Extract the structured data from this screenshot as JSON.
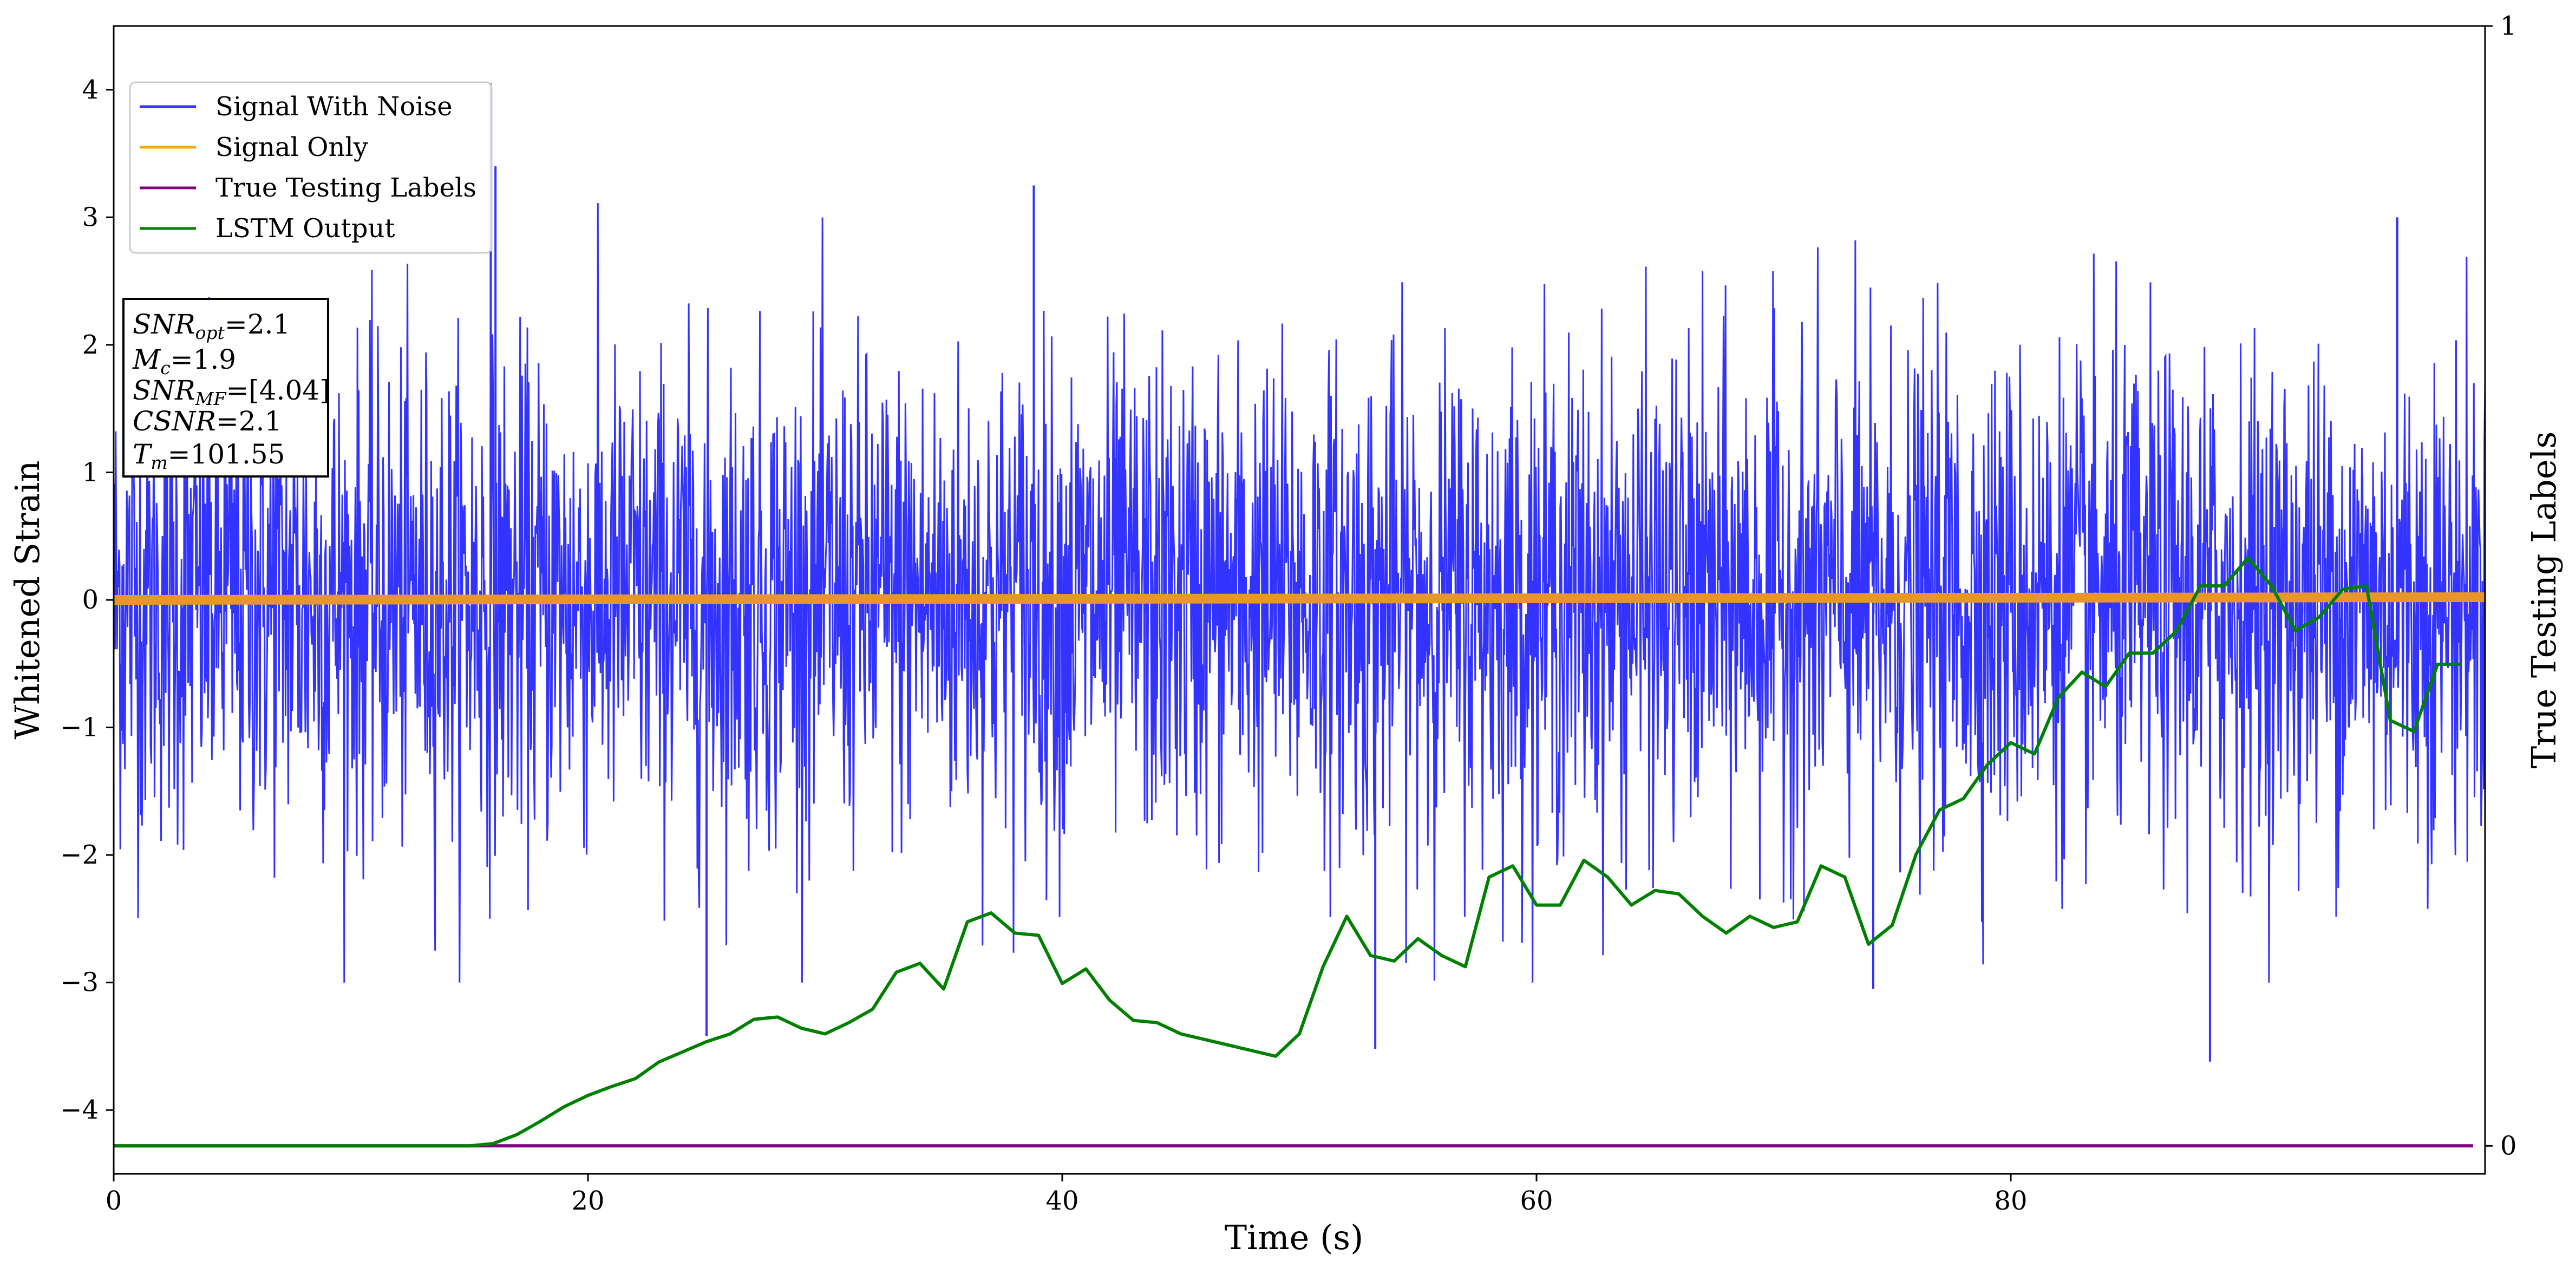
{
  "chart_data": {
    "type": "line",
    "xlabel": "Time (s)",
    "ylabel": "Whitened Strain",
    "ylabel_right": "True Testing Labels",
    "xlim": [
      0,
      100
    ],
    "ylim": [
      -4.5,
      4.5
    ],
    "ylim_right": [
      -0.025,
      1
    ],
    "x_ticks": [
      "0",
      "20",
      "40",
      "60",
      "80"
    ],
    "y_ticks": [
      "−4",
      "−3",
      "−2",
      "−1",
      "0",
      "1",
      "2",
      "3",
      "4"
    ],
    "y_ticks_right": [
      "0",
      "1"
    ],
    "legend_position": "upper-left",
    "colors": {
      "signal_with_noise": "#3333ff",
      "signal_only": "#e8952c",
      "true_labels": "#800080",
      "lstm_output": "#008000"
    },
    "series": [
      {
        "name": "Signal With Noise",
        "axis": "left",
        "noise_envelope": {
          "typical_range": [
            -1.6,
            1.6
          ],
          "max_peak": 4.05,
          "min_peak": -3.62
        }
      },
      {
        "name": "Signal Only",
        "axis": "left",
        "x": [
          0,
          100
        ],
        "y": [
          0.0,
          0.0
        ]
      },
      {
        "name": "True Testing Labels",
        "axis": "right",
        "x": [
          0,
          100
        ],
        "y": [
          0.0,
          0.0
        ]
      },
      {
        "name": "LSTM Output",
        "axis": "right",
        "x": [
          0,
          15,
          16,
          17,
          18,
          19,
          20,
          21,
          22,
          23,
          24,
          25,
          26,
          27,
          28,
          29,
          30,
          31,
          32,
          33,
          34,
          35,
          36,
          37,
          38,
          39,
          40,
          41,
          42,
          43,
          44,
          45,
          46,
          47,
          48,
          49,
          50,
          51,
          52,
          53,
          54,
          55,
          56,
          57,
          58,
          59,
          60,
          61,
          62,
          63,
          64,
          65,
          66,
          67,
          68,
          69,
          70,
          71,
          72,
          73,
          74,
          75,
          76,
          77,
          78,
          79,
          80,
          81,
          82,
          83,
          84,
          85,
          86,
          87,
          88,
          89,
          90,
          91,
          92,
          93,
          94,
          95,
          96,
          97,
          98,
          99
        ],
        "y": [
          0.0,
          0.0,
          0.002,
          0.01,
          0.022,
          0.035,
          0.045,
          0.053,
          0.06,
          0.075,
          0.084,
          0.093,
          0.1,
          0.113,
          0.115,
          0.105,
          0.1,
          0.11,
          0.122,
          0.155,
          0.163,
          0.14,
          0.2,
          0.208,
          0.19,
          0.188,
          0.145,
          0.158,
          0.13,
          0.112,
          0.11,
          0.1,
          0.095,
          0.09,
          0.085,
          0.08,
          0.1,
          0.16,
          0.205,
          0.17,
          0.165,
          0.185,
          0.17,
          0.16,
          0.24,
          0.25,
          0.215,
          0.215,
          0.255,
          0.24,
          0.215,
          0.228,
          0.225,
          0.205,
          0.19,
          0.205,
          0.195,
          0.2,
          0.25,
          0.24,
          0.18,
          0.197,
          0.26,
          0.3,
          0.31,
          0.34,
          0.36,
          0.35,
          0.4,
          0.423,
          0.41,
          0.44,
          0.44,
          0.46,
          0.5,
          0.5,
          0.525,
          0.5,
          0.46,
          0.472,
          0.497,
          0.5,
          0.38,
          0.37,
          0.43,
          0.43
        ]
      }
    ]
  },
  "info_box": {
    "line1": {
      "base": "SNR",
      "sub": "opt",
      "value": "=2.1"
    },
    "line2": {
      "base": "M",
      "sub": "c",
      "value": "=1.9"
    },
    "line3": {
      "base": "SNR",
      "sub": "MF",
      "value": "=[4.04]"
    },
    "line4": {
      "base": "CSNR",
      "value": "=2.1"
    },
    "line5": {
      "base": "T",
      "sub": "m",
      "value": "=101.55"
    }
  }
}
